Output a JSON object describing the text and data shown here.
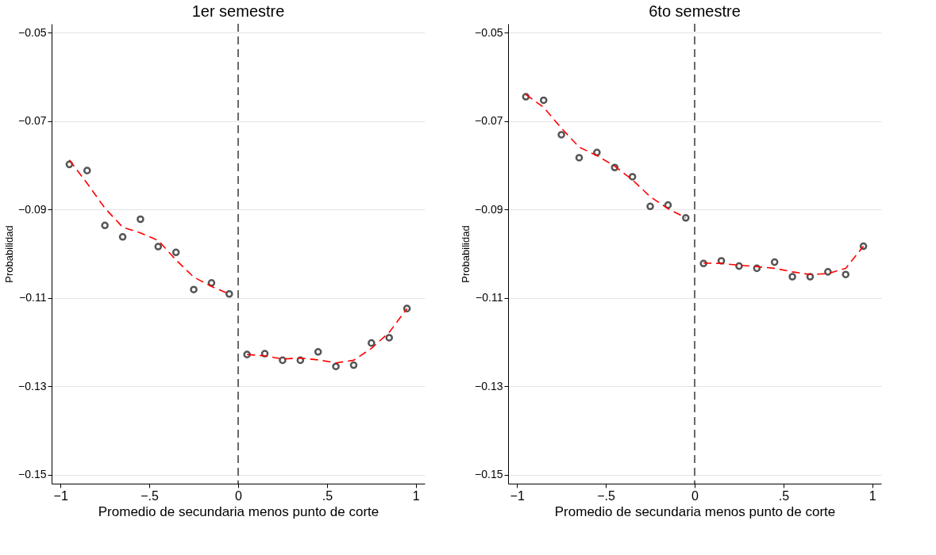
{
  "chart_data": [
    {
      "type": "scatter",
      "title": "1er semestre",
      "xlabel": "Promedio de secundaria menos punto de corte",
      "ylabel": "Probabilidad",
      "xlim": [
        -1.05,
        1.05
      ],
      "ylim": [
        -0.152,
        -0.048
      ],
      "xticks": [
        {
          "value": -1,
          "label": "−1"
        },
        {
          "value": -0.5,
          "label": "−.5"
        },
        {
          "value": 0,
          "label": "0"
        },
        {
          "value": 0.5,
          "label": ".5"
        },
        {
          "value": 1,
          "label": "1"
        }
      ],
      "yticks": [
        {
          "value": -0.15,
          "label": "−0.15"
        },
        {
          "value": -0.13,
          "label": "−0.13"
        },
        {
          "value": -0.11,
          "label": "−0.11"
        },
        {
          "value": -0.09,
          "label": "−0.09"
        },
        {
          "value": -0.07,
          "label": "−0.07"
        },
        {
          "value": -0.05,
          "label": "−0.05"
        }
      ],
      "grid": "y",
      "series": [
        {
          "color": "#555555",
          "marker": "circle",
          "x": [
            -0.95,
            -0.85,
            -0.75,
            -0.65,
            -0.55,
            -0.45,
            -0.35,
            -0.25,
            -0.15,
            -0.05,
            0.05,
            0.15,
            0.25,
            0.35,
            0.45,
            0.55,
            0.65,
            0.75,
            0.85,
            0.95
          ],
          "values": [
            -0.0798,
            -0.0812,
            -0.0936,
            -0.0962,
            -0.0922,
            -0.0984,
            -0.0997,
            -0.1081,
            -0.1066,
            -0.1091,
            -0.1228,
            -0.1226,
            -0.1241,
            -0.1241,
            -0.1222,
            -0.1255,
            -0.1252,
            -0.1202,
            -0.119,
            -0.1124
          ]
        },
        {
          "type": "line",
          "color": "#ff0000",
          "marker": "none",
          "line_style": "dashed",
          "x": [
            -0.95,
            -0.85,
            -0.75,
            -0.65,
            -0.55,
            -0.45,
            -0.35,
            -0.25,
            -0.15,
            -0.05
          ],
          "values": [
            -0.0788,
            -0.0841,
            -0.0897,
            -0.094,
            -0.0953,
            -0.097,
            -0.1014,
            -0.1053,
            -0.1074,
            -0.1091
          ]
        },
        {
          "type": "line",
          "color": "#ff0000",
          "marker": "none",
          "line_style": "dashed",
          "x": [
            0.05,
            0.15,
            0.25,
            0.35,
            0.45,
            0.55,
            0.65,
            0.75,
            0.85,
            0.95
          ],
          "values": [
            -0.1228,
            -0.1231,
            -0.1238,
            -0.1236,
            -0.124,
            -0.1247,
            -0.1241,
            -0.1214,
            -0.1178,
            -0.1124
          ]
        }
      ],
      "ref_lines": [
        {
          "axis": "x",
          "value": 0,
          "color": "#444444",
          "line_style": "dashed"
        }
      ]
    },
    {
      "type": "scatter",
      "title": "6to semestre",
      "xlabel": "Promedio de secundaria menos punto de corte",
      "ylabel": "Probabilidad",
      "xlim": [
        -1.05,
        1.05
      ],
      "ylim": [
        -0.152,
        -0.048
      ],
      "xticks": [
        {
          "value": -1,
          "label": "−1"
        },
        {
          "value": -0.5,
          "label": "−.5"
        },
        {
          "value": 0,
          "label": "0"
        },
        {
          "value": 0.5,
          "label": ".5"
        },
        {
          "value": 1,
          "label": "1"
        }
      ],
      "yticks": [
        {
          "value": -0.15,
          "label": "−0.15"
        },
        {
          "value": -0.13,
          "label": "−0.13"
        },
        {
          "value": -0.11,
          "label": "−0.11"
        },
        {
          "value": -0.09,
          "label": "−0.09"
        },
        {
          "value": -0.07,
          "label": "−0.07"
        },
        {
          "value": -0.05,
          "label": "−0.05"
        }
      ],
      "grid": "y",
      "series": [
        {
          "color": "#555555",
          "marker": "circle",
          "x": [
            -0.95,
            -0.85,
            -0.75,
            -0.65,
            -0.55,
            -0.45,
            -0.35,
            -0.25,
            -0.15,
            -0.05,
            0.05,
            0.15,
            0.25,
            0.35,
            0.45,
            0.55,
            0.65,
            0.75,
            0.85,
            0.95
          ],
          "values": [
            -0.0645,
            -0.0653,
            -0.0731,
            -0.0783,
            -0.0771,
            -0.0805,
            -0.0826,
            -0.0893,
            -0.089,
            -0.0919,
            -0.1022,
            -0.1016,
            -0.1028,
            -0.1033,
            -0.1019,
            -0.1052,
            -0.1052,
            -0.1041,
            -0.1047,
            -0.0983
          ]
        },
        {
          "type": "line",
          "color": "#ff0000",
          "marker": "none",
          "line_style": "dashed",
          "x": [
            -0.95,
            -0.85,
            -0.75,
            -0.65,
            -0.55,
            -0.45,
            -0.35,
            -0.25,
            -0.15,
            -0.05
          ],
          "values": [
            -0.064,
            -0.0669,
            -0.0716,
            -0.0759,
            -0.0778,
            -0.0802,
            -0.0833,
            -0.0871,
            -0.0898,
            -0.0919
          ]
        },
        {
          "type": "line",
          "color": "#ff0000",
          "marker": "none",
          "line_style": "dashed",
          "x": [
            0.05,
            0.15,
            0.25,
            0.35,
            0.45,
            0.55,
            0.65,
            0.75,
            0.85,
            0.95
          ],
          "values": [
            -0.1021,
            -0.1022,
            -0.1026,
            -0.1029,
            -0.1033,
            -0.1041,
            -0.1047,
            -0.1045,
            -0.1033,
            -0.0983
          ]
        }
      ],
      "ref_lines": [
        {
          "axis": "x",
          "value": 0,
          "color": "#444444",
          "line_style": "dashed"
        }
      ]
    }
  ]
}
